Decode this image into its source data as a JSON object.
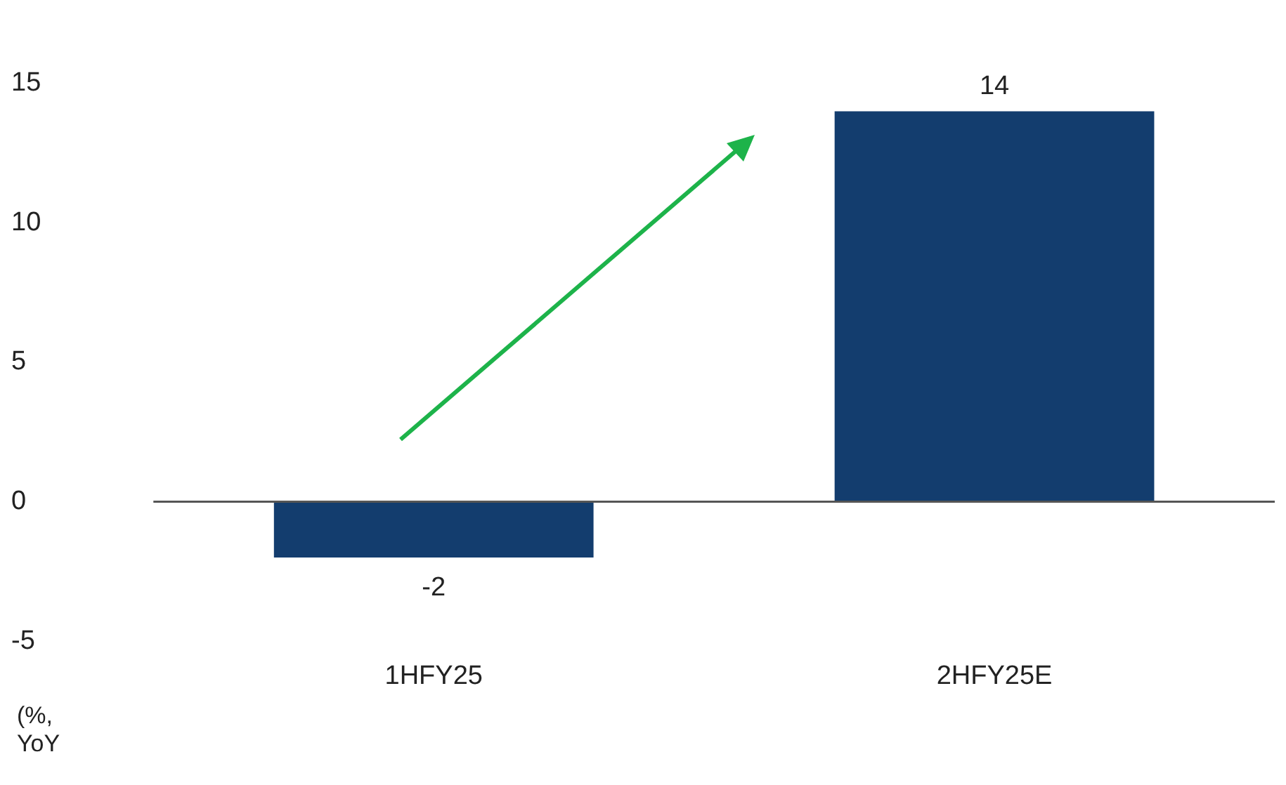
{
  "chart_data": {
    "type": "bar",
    "ylabel": "(%, YoY",
    "categories": [
      "1HFY25",
      "2HFY25E"
    ],
    "values": [
      -2,
      14
    ],
    "color": "#133d6e",
    "ylim": [
      -5,
      15
    ],
    "yticks": [
      -5,
      0,
      5,
      10,
      15
    ],
    "data_labels": true,
    "ref_lines": [
      {
        "axis": "y",
        "value": 0,
        "color": "#555555"
      }
    ],
    "grid": false,
    "legend": false
  }
}
